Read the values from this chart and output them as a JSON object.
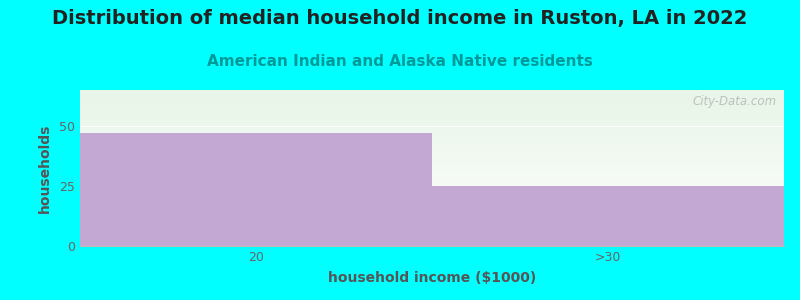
{
  "title": "Distribution of median household income in Ruston, LA in 2022",
  "subtitle": "American Indian and Alaska Native residents",
  "xlabel": "household income ($1000)",
  "ylabel": "households",
  "categories": [
    "20",
    ">30"
  ],
  "values": [
    47,
    25
  ],
  "bar_color": "#c4a8d4",
  "background_color": "#00ffff",
  "plot_bg_top_color": "#e8f5e8",
  "plot_bg_bottom_color": "#ffffff",
  "ylim": [
    0,
    65
  ],
  "yticks": [
    0,
    25,
    50
  ],
  "title_fontsize": 14,
  "subtitle_fontsize": 11,
  "axis_label_fontsize": 10,
  "tick_fontsize": 9,
  "watermark": "City-Data.com"
}
